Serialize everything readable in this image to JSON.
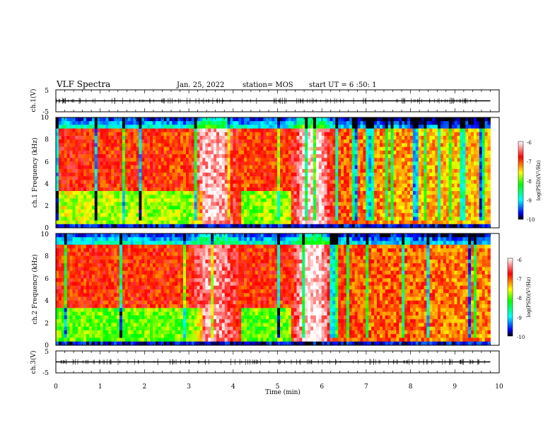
{
  "header": {
    "title": "VLF Spectra",
    "date": "Jan. 25, 2022",
    "station": "station= MOS",
    "start": "start  UT =   6 :50: 1"
  },
  "chart_data": [
    {
      "type": "line",
      "panel": "ch1-waveform",
      "ylabel": "ch.1(V)",
      "ylim": [
        -5,
        5
      ],
      "y_ticks": [
        "5",
        "-5"
      ],
      "x": [
        0,
        1,
        2,
        3,
        4,
        5,
        6,
        7,
        8,
        9,
        9.8
      ],
      "values": [
        0,
        0,
        0,
        0,
        0,
        0,
        0,
        0,
        0,
        0,
        0
      ]
    },
    {
      "type": "heatmap",
      "panel": "ch1-spectrogram",
      "ylabel": "ch.1 Frequency (kHz)",
      "ylim": [
        0,
        10
      ],
      "y_ticks": [
        "0",
        "2",
        "4",
        "6",
        "8",
        "10"
      ],
      "colorbar": {
        "label": "log(PSD)(V²/Hz)",
        "range": [
          -10,
          -6
        ],
        "ticks": [
          "-6",
          "-7",
          "-8",
          "-9",
          "-10"
        ]
      },
      "x_time_min": [
        0,
        1,
        2,
        3,
        3.3,
        3.5,
        3.8,
        4.2,
        5.3,
        5.6,
        5.95,
        6.3,
        7,
        8,
        9,
        9.8
      ],
      "peak_log_psd": [
        -6.8,
        -6.9,
        -6.9,
        -7.0,
        -6.3,
        -6.2,
        -6.3,
        -7.0,
        -6.9,
        -6.1,
        -6.1,
        -7.0,
        -7.2,
        -7.3,
        -7.4,
        -7.4
      ]
    },
    {
      "type": "heatmap",
      "panel": "ch2-spectrogram",
      "ylabel": "ch.2 Frequency (kHz)",
      "ylim": [
        0,
        10
      ],
      "y_ticks": [
        "0",
        "2",
        "4",
        "6",
        "8",
        "10"
      ],
      "colorbar": {
        "label": "log(PSD)(V²/Hz)",
        "range": [
          -10,
          -6
        ],
        "ticks": [
          "-6",
          "-7",
          "-8",
          "-9",
          "-10"
        ]
      },
      "x_time_min": [
        0,
        1,
        2,
        3,
        3.3,
        3.5,
        3.8,
        4.2,
        5.3,
        5.6,
        5.95,
        6.3,
        7,
        8,
        9,
        9.8
      ],
      "peak_log_psd": [
        -6.9,
        -6.9,
        -6.9,
        -6.9,
        -6.4,
        -6.3,
        -6.4,
        -6.9,
        -6.9,
        -6.1,
        -6.1,
        -6.9,
        -7.1,
        -7.1,
        -7.2,
        -7.2
      ]
    },
    {
      "type": "line",
      "panel": "ch3-waveform",
      "ylabel": "ch.3(V)",
      "ylim": [
        -5,
        5
      ],
      "y_ticks": [
        "5",
        "-5"
      ],
      "xlabel": "Time  (min)",
      "x_ticks": [
        "0",
        "1",
        "2",
        "3",
        "4",
        "5",
        "6",
        "7",
        "8",
        "9",
        "10"
      ],
      "x": [
        0,
        1,
        2,
        3,
        4,
        5,
        6,
        7,
        8,
        9,
        9.8
      ],
      "values": [
        0,
        0,
        0,
        0,
        0,
        0,
        0,
        0,
        0,
        0,
        0
      ]
    }
  ]
}
